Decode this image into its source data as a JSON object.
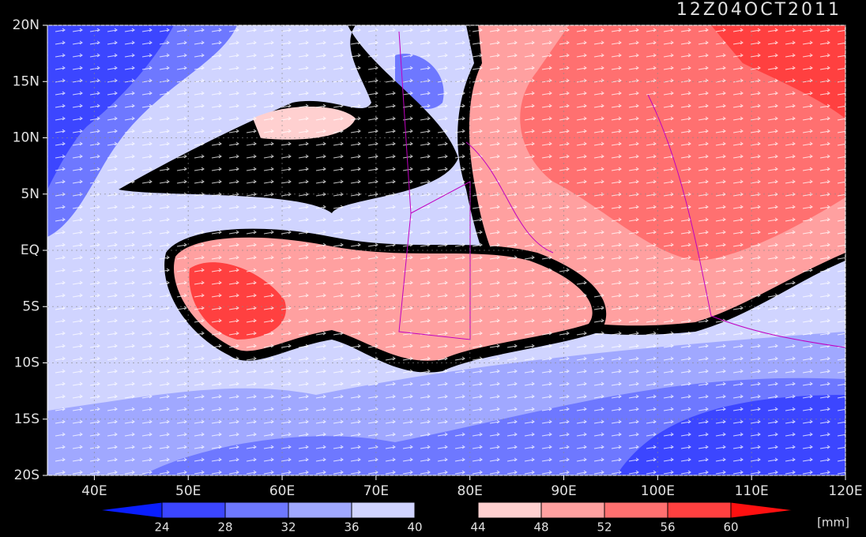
{
  "chart_data": {
    "type": "map",
    "title": "12Z04OCT2011",
    "xlim": [
      35,
      120
    ],
    "ylim": [
      -20,
      20
    ],
    "xticks": [
      {
        "value": 40,
        "label": "40E"
      },
      {
        "value": 50,
        "label": "50E"
      },
      {
        "value": 60,
        "label": "60E"
      },
      {
        "value": 70,
        "label": "70E"
      },
      {
        "value": 80,
        "label": "80E"
      },
      {
        "value": 90,
        "label": "90E"
      },
      {
        "value": 100,
        "label": "100E"
      },
      {
        "value": 110,
        "label": "110E"
      },
      {
        "value": 120,
        "label": "120E"
      }
    ],
    "yticks": [
      {
        "value": 20,
        "label": "20N"
      },
      {
        "value": 15,
        "label": "15N"
      },
      {
        "value": 10,
        "label": "10N"
      },
      {
        "value": 5,
        "label": "5N"
      },
      {
        "value": 0,
        "label": "EQ"
      },
      {
        "value": -5,
        "label": "5S"
      },
      {
        "value": -10,
        "label": "10S"
      },
      {
        "value": -15,
        "label": "15S"
      },
      {
        "value": -20,
        "label": "20S"
      }
    ],
    "grid": true,
    "colorbar": {
      "levels": [
        24,
        28,
        32,
        36,
        40,
        44,
        48,
        52,
        56,
        60
      ],
      "colors": [
        "#0a1eff",
        "#3c46ff",
        "#6e78ff",
        "#a0a8ff",
        "#d0d4ff",
        "#000000",
        "#ffd0d0",
        "#ffa0a0",
        "#ff7070",
        "#ff4040",
        "#ff1010"
      ],
      "unit": "[mm]"
    }
  }
}
